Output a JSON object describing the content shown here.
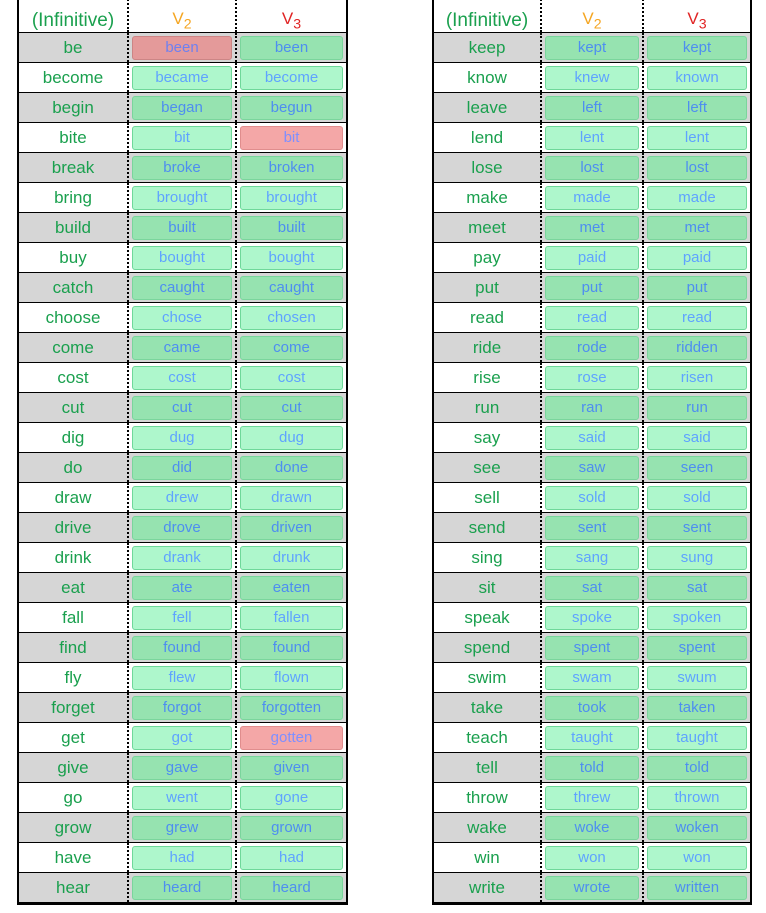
{
  "headers": {
    "col1": "(Infinitive)",
    "col2": "V",
    "col2_sub": "2",
    "col3": "V",
    "col3_sub": "3"
  },
  "left": [
    {
      "base": "be",
      "v2": "been",
      "v3": "been",
      "v2_red": true,
      "v3_red": false
    },
    {
      "base": "become",
      "v2": "became",
      "v3": "become"
    },
    {
      "base": "begin",
      "v2": "began",
      "v3": "begun"
    },
    {
      "base": "bite",
      "v2": "bit",
      "v3": "bit",
      "v2_red": false,
      "v3_red": true
    },
    {
      "base": "break",
      "v2": "broke",
      "v3": "broken"
    },
    {
      "base": "bring",
      "v2": "brought",
      "v3": "brought"
    },
    {
      "base": "build",
      "v2": "built",
      "v3": "built"
    },
    {
      "base": "buy",
      "v2": "bought",
      "v3": "bought"
    },
    {
      "base": "catch",
      "v2": "caught",
      "v3": "caught"
    },
    {
      "base": "choose",
      "v2": "chose",
      "v3": "chosen"
    },
    {
      "base": "come",
      "v2": "came",
      "v3": "come"
    },
    {
      "base": "cost",
      "v2": "cost",
      "v3": "cost"
    },
    {
      "base": "cut",
      "v2": "cut",
      "v3": "cut"
    },
    {
      "base": "dig",
      "v2": "dug",
      "v3": "dug"
    },
    {
      "base": "do",
      "v2": "did",
      "v3": "done"
    },
    {
      "base": "draw",
      "v2": "drew",
      "v3": "drawn"
    },
    {
      "base": "drive",
      "v2": "drove",
      "v3": "driven"
    },
    {
      "base": "drink",
      "v2": "drank",
      "v3": "drunk"
    },
    {
      "base": "eat",
      "v2": "ate",
      "v3": "eaten"
    },
    {
      "base": "fall",
      "v2": "fell",
      "v3": "fallen"
    },
    {
      "base": "find",
      "v2": "found",
      "v3": "found"
    },
    {
      "base": "fly",
      "v2": "flew",
      "v3": "flown"
    },
    {
      "base": "forget",
      "v2": "forgot",
      "v3": "forgotten"
    },
    {
      "base": "get",
      "v2": "got",
      "v3": "gotten",
      "v2_red": false,
      "v3_red": true
    },
    {
      "base": "give",
      "v2": "gave",
      "v3": "given"
    },
    {
      "base": "go",
      "v2": "went",
      "v3": "gone"
    },
    {
      "base": "grow",
      "v2": "grew",
      "v3": "grown"
    },
    {
      "base": "have",
      "v2": "had",
      "v3": "had"
    },
    {
      "base": "hear",
      "v2": "heard",
      "v3": "heard"
    }
  ],
  "right": [
    {
      "base": "keep",
      "v2": "kept",
      "v3": "kept"
    },
    {
      "base": "know",
      "v2": "knew",
      "v3": "known"
    },
    {
      "base": "leave",
      "v2": "left",
      "v3": "left"
    },
    {
      "base": "lend",
      "v2": "lent",
      "v3": "lent"
    },
    {
      "base": "lose",
      "v2": "lost",
      "v3": "lost"
    },
    {
      "base": "make",
      "v2": "made",
      "v3": "made"
    },
    {
      "base": "meet",
      "v2": "met",
      "v3": "met"
    },
    {
      "base": "pay",
      "v2": "paid",
      "v3": "paid"
    },
    {
      "base": "put",
      "v2": "put",
      "v3": "put"
    },
    {
      "base": "read",
      "v2": "read",
      "v3": "read"
    },
    {
      "base": "ride",
      "v2": "rode",
      "v3": "ridden"
    },
    {
      "base": "rise",
      "v2": "rose",
      "v3": "risen"
    },
    {
      "base": "run",
      "v2": "ran",
      "v3": "run"
    },
    {
      "base": "say",
      "v2": "said",
      "v3": "said"
    },
    {
      "base": "see",
      "v2": "saw",
      "v3": "seen"
    },
    {
      "base": "sell",
      "v2": "sold",
      "v3": "sold"
    },
    {
      "base": "send",
      "v2": "sent",
      "v3": "sent"
    },
    {
      "base": "sing",
      "v2": "sang",
      "v3": "sung"
    },
    {
      "base": "sit",
      "v2": "sat",
      "v3": "sat"
    },
    {
      "base": "speak",
      "v2": "spoke",
      "v3": "spoken"
    },
    {
      "base": "spend",
      "v2": "spent",
      "v3": "spent"
    },
    {
      "base": "swim",
      "v2": "swam",
      "v3": "swum"
    },
    {
      "base": "take",
      "v2": "took",
      "v3": "taken"
    },
    {
      "base": "teach",
      "v2": "taught",
      "v3": "taught"
    },
    {
      "base": "tell",
      "v2": "told",
      "v3": "told"
    },
    {
      "base": "throw",
      "v2": "threw",
      "v3": "thrown"
    },
    {
      "base": "wake",
      "v2": "woke",
      "v3": "woken"
    },
    {
      "base": "win",
      "v2": "won",
      "v3": "won"
    },
    {
      "base": "write",
      "v2": "wrote",
      "v3": "written"
    }
  ]
}
